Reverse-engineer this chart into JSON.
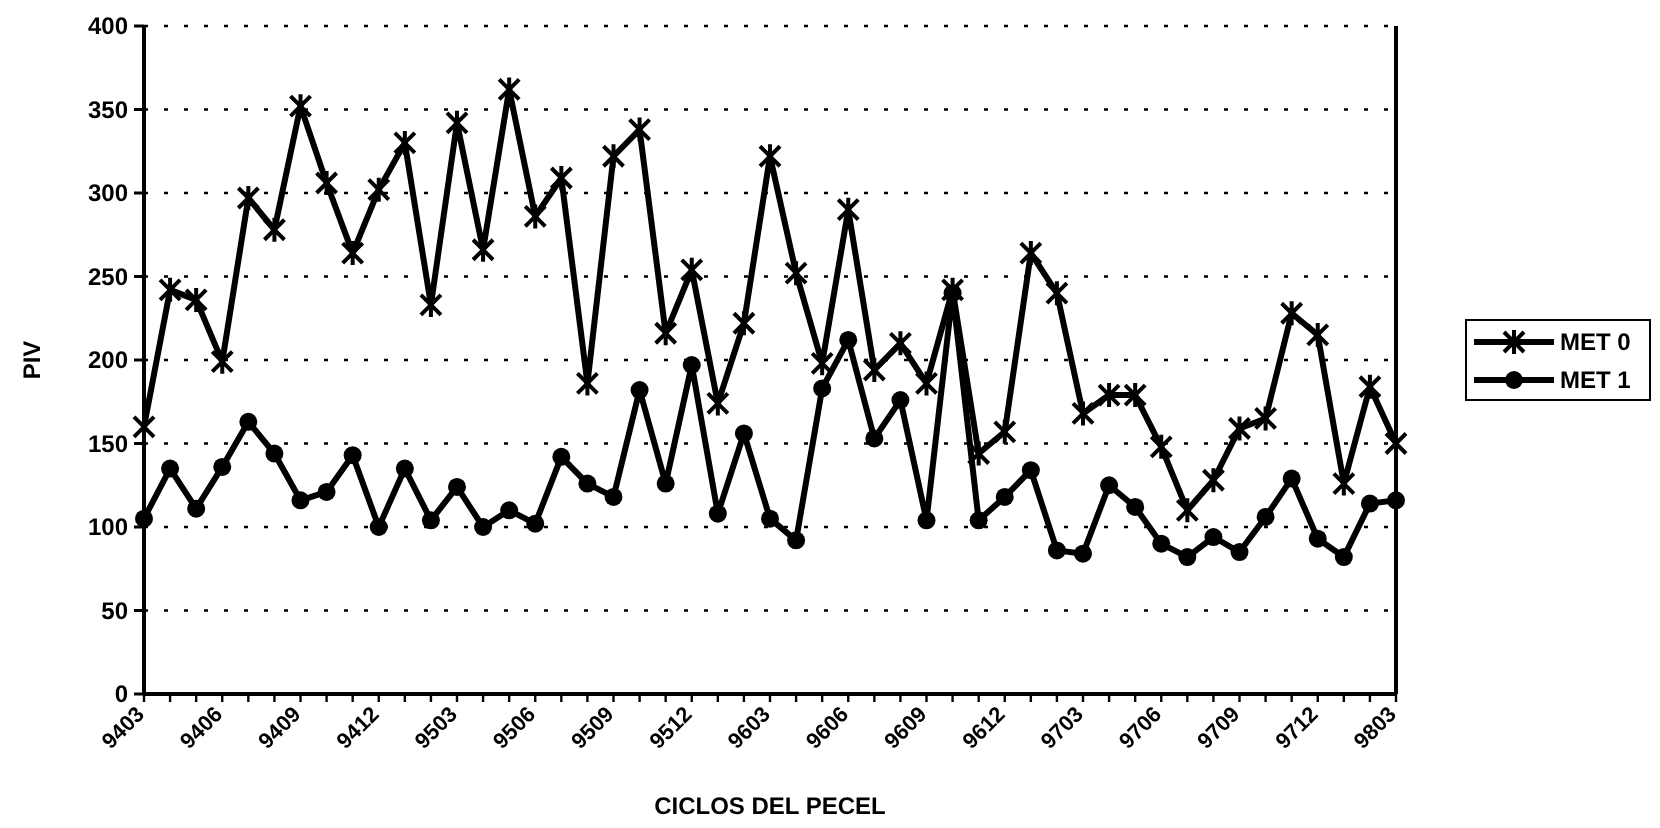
{
  "chart_data": {
    "type": "line",
    "xlabel": "CICLOS DEL PECEL",
    "ylabel": "PIV",
    "categories": [
      "9403",
      null,
      null,
      "9406",
      null,
      null,
      "9409",
      null,
      null,
      "9412",
      null,
      null,
      "9503",
      null,
      null,
      "9506",
      null,
      null,
      "9509",
      null,
      null,
      "9512",
      null,
      null,
      "9603",
      null,
      null,
      "9606",
      null,
      null,
      "9609",
      null,
      null,
      "9612",
      null,
      null,
      "9703",
      null,
      null,
      "9706",
      null,
      null,
      "9709",
      null,
      null,
      "9712",
      null,
      null,
      "9803"
    ],
    "series": [
      {
        "name": "MET 0",
        "color": "#000000",
        "marker": "cross",
        "values": [
          160,
          242,
          236,
          199,
          297,
          278,
          352,
          306,
          264,
          302,
          330,
          233,
          342,
          266,
          362,
          286,
          309,
          186,
          322,
          338,
          216,
          254,
          174,
          222,
          322,
          252,
          198,
          290,
          194,
          210,
          186,
          242,
          144,
          157,
          264,
          240,
          168,
          179,
          179,
          148,
          110,
          128,
          159,
          165,
          228,
          215,
          126,
          184,
          150
        ]
      },
      {
        "name": "MET 1",
        "color": "#000000",
        "marker": "circle",
        "values": [
          105,
          135,
          111,
          136,
          163,
          144,
          116,
          121,
          143,
          100,
          135,
          104,
          124,
          100,
          110,
          102,
          142,
          126,
          118,
          182,
          126,
          197,
          108,
          156,
          105,
          92,
          183,
          212,
          153,
          176,
          104,
          240,
          104,
          118,
          134,
          86,
          84,
          125,
          112,
          90,
          82,
          94,
          85,
          106,
          129,
          93,
          82,
          114,
          116
        ]
      }
    ],
    "ylim": [
      0,
      400
    ],
    "yticks": [
      0,
      50,
      100,
      150,
      200,
      250,
      300,
      350,
      400
    ],
    "grid": "y",
    "legend": "right",
    "line_style": "solid"
  }
}
